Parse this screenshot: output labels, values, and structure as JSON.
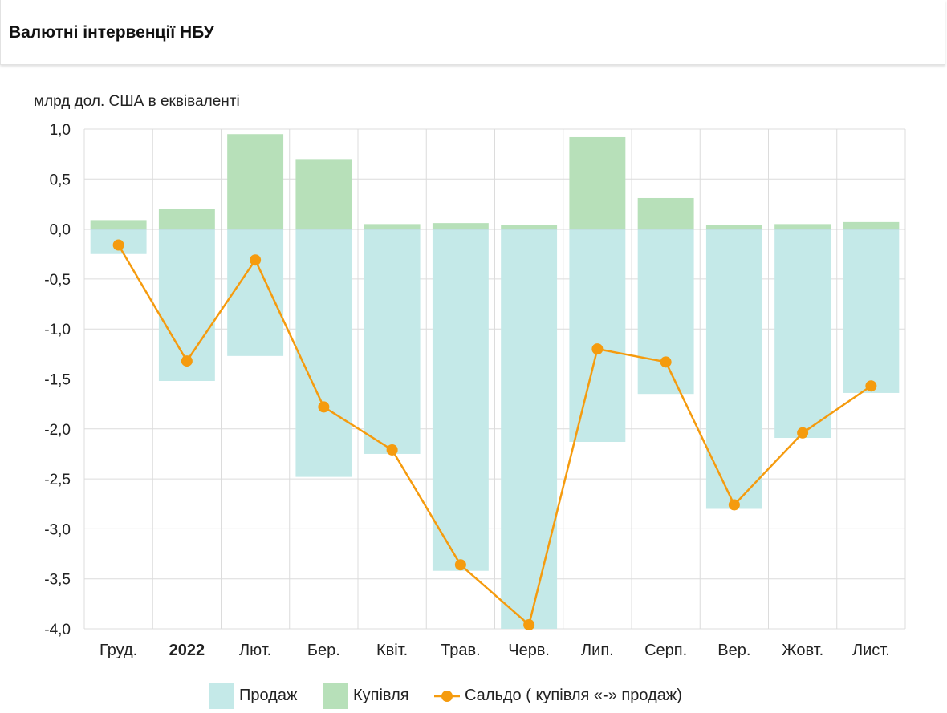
{
  "header": {
    "title": "Валютні інтервенції НБУ"
  },
  "chart_data": {
    "type": "bar",
    "title": "Валютні інтервенції НБУ",
    "ylabel": "млрд дол. США в еквіваленті",
    "xlabel": "",
    "ylim": [
      -4.0,
      1.0
    ],
    "yticks": [
      1.0,
      0.5,
      0.0,
      -0.5,
      -1.0,
      -1.5,
      -2.0,
      -2.5,
      -3.0,
      -3.5,
      -4.0
    ],
    "ytick_labels": [
      "1,0",
      "0,5",
      "0,0",
      "-0,5",
      "-1,0",
      "-1,5",
      "-2,0",
      "-2,5",
      "-3,0",
      "-3,5",
      "-4,0"
    ],
    "categories": [
      "Груд.",
      "2022",
      "Лют.",
      "Бер.",
      "Квіт.",
      "Трав.",
      "Черв.",
      "Лип.",
      "Серп.",
      "Вер.",
      "Жовт.",
      "Лист."
    ],
    "bold_categories": [
      "2022"
    ],
    "grid": true,
    "legend_position": "bottom",
    "series": [
      {
        "name": "Продаж",
        "kind": "bar",
        "color": "#c4e9e8",
        "values": [
          -0.25,
          -1.52,
          -1.27,
          -2.48,
          -2.25,
          -3.42,
          -4.0,
          -2.13,
          -1.65,
          -2.8,
          -2.09,
          -1.64
        ]
      },
      {
        "name": "Купівля",
        "kind": "bar",
        "color": "#b7e0b9",
        "values": [
          0.09,
          0.2,
          0.95,
          0.7,
          0.05,
          0.06,
          0.04,
          0.92,
          0.31,
          0.04,
          0.05,
          0.07
        ]
      },
      {
        "name": "Сальдо ( купівля «-» продаж)",
        "kind": "line",
        "color": "#f59b0e",
        "values": [
          -0.16,
          -1.32,
          -0.31,
          -1.78,
          -2.21,
          -3.36,
          -3.96,
          -1.2,
          -1.33,
          -2.76,
          -2.04,
          -1.57
        ]
      }
    ]
  },
  "legend": {
    "sales": "Продаж",
    "purchases": "Купівля",
    "balance": "Сальдо ( купівля «-» продаж)"
  }
}
